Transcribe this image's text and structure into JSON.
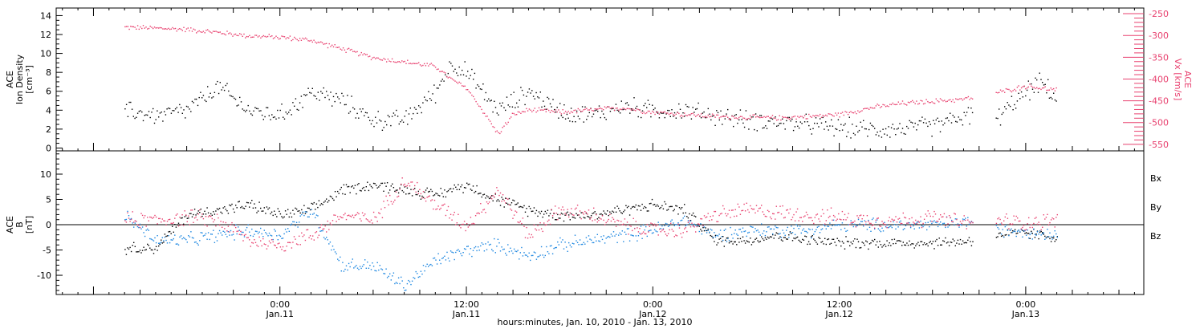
{
  "colors": {
    "density": "#000000",
    "vx": "#e8416f",
    "bx": "#000000",
    "by": "#1a85e0",
    "bz": "#e8416f",
    "axis": "#000000"
  },
  "chart_data": [
    {
      "type": "scatter",
      "panel": "top",
      "ylabel_left_lines": [
        "ACE",
        "Ion Density",
        "[cm⁻³]"
      ],
      "ylabel_right_lines": [
        "ACE",
        "Vx [km/s]"
      ],
      "y_left_ticks": [
        "0",
        "2",
        "4",
        "6",
        "8",
        "10",
        "12",
        "14"
      ],
      "y_left_range": [
        -0.3,
        14.8
      ],
      "y_right_ticks": [
        "-250",
        "-300",
        "-350",
        "-400",
        "-450",
        "-500",
        "-550"
      ],
      "y_right_range": [
        -565,
        -237
      ],
      "series_density_hours": [
        -10,
        -8,
        -6,
        -4,
        -2,
        0,
        2,
        4,
        6,
        8,
        10,
        11,
        12,
        14,
        16,
        18,
        20,
        22,
        24,
        26,
        28,
        30,
        32,
        34,
        36,
        38,
        40,
        42,
        45,
        46,
        48,
        49,
        50
      ],
      "series_density_values": [
        4,
        3.5,
        4,
        6.5,
        4,
        3.5,
        6,
        5,
        3,
        3,
        6,
        9,
        8,
        4,
        6,
        4,
        3.5,
        4.5,
        4,
        4,
        3.5,
        3,
        2.8,
        2.5,
        2.2,
        2.0,
        2.1,
        2.4,
        3.8,
        3,
        6,
        7,
        5
      ],
      "series_vx_hours": [
        -10,
        -8,
        -6,
        -4,
        -2,
        0,
        2,
        4,
        6,
        8,
        10,
        11,
        12,
        13,
        14,
        15,
        16,
        18,
        20,
        22,
        24,
        26,
        28,
        30,
        32,
        34,
        36,
        38,
        40,
        42,
        44,
        45,
        48,
        50
      ],
      "series_vx_values": [
        -280,
        -282,
        -285,
        -292,
        -300,
        -303,
        -310,
        -330,
        -350,
        -360,
        -370,
        -400,
        -420,
        -470,
        -525,
        -480,
        -470,
        -475,
        -470,
        -465,
        -475,
        -480,
        -485,
        -487,
        -488,
        -485,
        -480,
        -465,
        -455,
        -450,
        -445,
        -440,
        -415,
        -425
      ]
    },
    {
      "type": "scatter",
      "panel": "bottom",
      "ylabel_left_lines": [
        "ACE",
        "B",
        "[nT]"
      ],
      "y_ticks": [
        "-10",
        "-5",
        "0",
        "5",
        "10"
      ],
      "y_range": [
        -13.8,
        14.6
      ],
      "legend": [
        "Bx",
        "By",
        "Bz"
      ],
      "series": [
        {
          "name": "Bx",
          "hours": [
            -10,
            -8,
            -6,
            -4,
            -2,
            0,
            2,
            4,
            6,
            8,
            10,
            12,
            14,
            16,
            18,
            20,
            22,
            24,
            26,
            28,
            30,
            32,
            34,
            36,
            38,
            40,
            42,
            45,
            46,
            48,
            50
          ],
          "values": [
            -4.5,
            -4.5,
            2,
            3,
            4,
            2,
            3,
            7,
            8,
            7,
            6,
            8,
            5,
            3,
            2,
            2,
            3,
            4,
            3,
            -3,
            -3,
            -2,
            -3,
            -3.5,
            -3.5,
            -3.5,
            -3.5,
            -3,
            -2,
            -1.5,
            -2.5
          ]
        },
        {
          "name": "By",
          "hours": [
            -10,
            -8,
            -6,
            -4,
            -2,
            0,
            2,
            4,
            6,
            8,
            10,
            12,
            14,
            16,
            18,
            20,
            22,
            24,
            26,
            28,
            30,
            32,
            34,
            36,
            38,
            40,
            42,
            45,
            46,
            48,
            50
          ],
          "values": [
            2,
            -3,
            -3,
            -2,
            -1,
            -2,
            3,
            -8,
            -8,
            -12,
            -7,
            -5,
            -4,
            -6,
            -4,
            -3,
            -2,
            -1,
            1,
            -2,
            -1,
            -1,
            -1,
            0,
            0,
            0,
            0,
            1,
            -1,
            -1,
            -2
          ]
        },
        {
          "name": "Bz",
          "hours": [
            -10,
            -8,
            -6,
            -4,
            -2,
            0,
            2,
            4,
            6,
            8,
            10,
            12,
            14,
            16,
            18,
            20,
            22,
            24,
            26,
            28,
            30,
            32,
            34,
            36,
            38,
            40,
            42,
            45,
            46,
            48,
            50
          ],
          "values": [
            1,
            1,
            1.5,
            1,
            -3,
            -4,
            -2,
            2,
            1,
            9,
            4,
            0,
            7,
            -2,
            3,
            2,
            0,
            -1,
            -1,
            2,
            3,
            2.5,
            2,
            1.5,
            1,
            1,
            1.5,
            0,
            1,
            0.5,
            1
          ]
        }
      ]
    }
  ],
  "x_axis": {
    "range_hours": [
      -14.4,
      55.6
    ],
    "tick_hours": [
      0,
      12,
      24,
      36,
      48
    ],
    "tick_time_labels": [
      "0:00",
      "12:00",
      "0:00",
      "12:00",
      "0:00"
    ],
    "tick_date_labels": [
      "Jan.11",
      "Jan.11",
      "Jan.12",
      "Jan.12",
      "Jan.13"
    ],
    "label": "hours:minutes, Jan. 10, 2010 - Jan. 13, 2010"
  }
}
